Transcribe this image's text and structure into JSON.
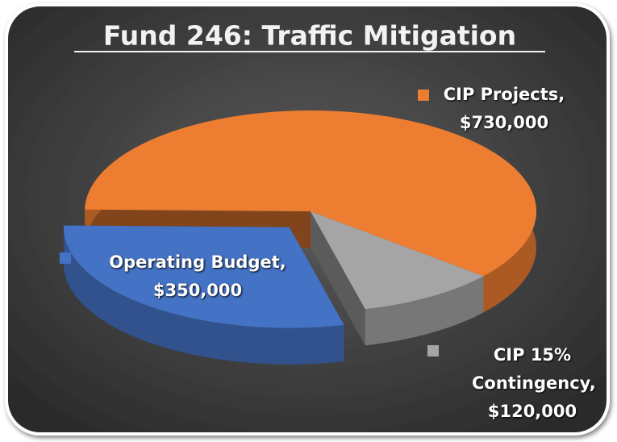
{
  "chart_data": {
    "type": "pie3d",
    "title": "Fund 246: Traffic Mitigation",
    "categories": [
      "CIP Projects,",
      "CIP 15% Contingency,",
      "Operating Budget,"
    ],
    "values": [
      730000,
      120000,
      350000
    ],
    "value_labels": [
      "$730,000",
      "$120,000",
      "$350,000"
    ],
    "colors": [
      "#ed7d31",
      "#a5a5a5",
      "#4472c4"
    ],
    "exploded": [
      false,
      false,
      true
    ]
  }
}
